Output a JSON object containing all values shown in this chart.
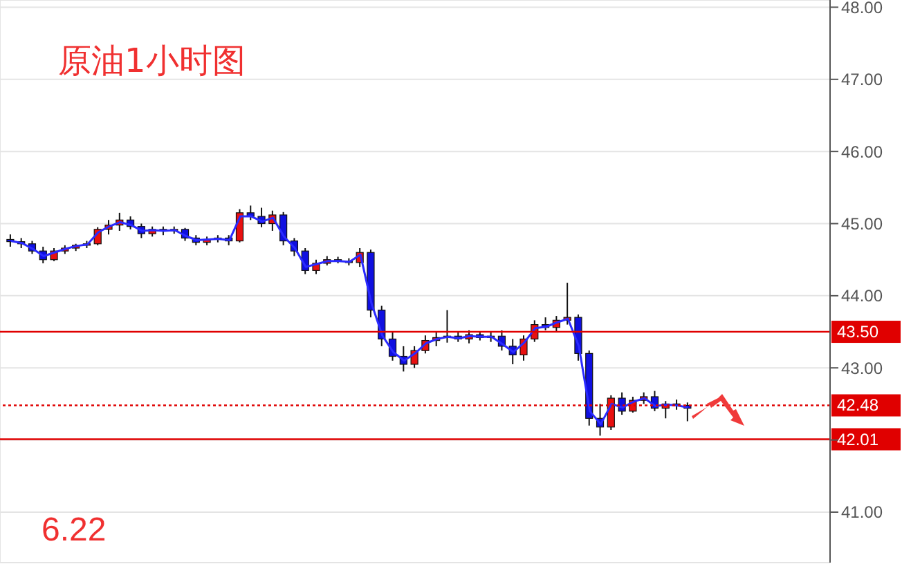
{
  "chart_data": {
    "type": "candlestick",
    "title": "原油1小时图",
    "categories": [
      null,
      null,
      null,
      null,
      null,
      null,
      null,
      null,
      null,
      null,
      null,
      null,
      null,
      null,
      null,
      null,
      null,
      null,
      null,
      null,
      null,
      null,
      null,
      null,
      null,
      null,
      null,
      null,
      null,
      null,
      null,
      null,
      null,
      null,
      null,
      null,
      null,
      null,
      null,
      null,
      null,
      null,
      null,
      null,
      null,
      null,
      null,
      null,
      null,
      null,
      null,
      null,
      null,
      null,
      null,
      null,
      null,
      null,
      null,
      null,
      null,
      null,
      null
    ],
    "ohlc": [
      [
        44.78,
        44.85,
        44.68,
        44.75
      ],
      [
        44.75,
        44.8,
        44.66,
        44.72
      ],
      [
        44.72,
        44.76,
        44.58,
        44.62
      ],
      [
        44.62,
        44.68,
        44.45,
        44.5
      ],
      [
        44.5,
        44.66,
        44.48,
        44.62
      ],
      [
        44.62,
        44.7,
        44.58,
        44.66
      ],
      [
        44.66,
        44.72,
        44.62,
        44.7
      ],
      [
        44.7,
        44.76,
        44.66,
        44.72
      ],
      [
        44.72,
        44.95,
        44.7,
        44.92
      ],
      [
        44.92,
        45.05,
        44.85,
        44.98
      ],
      [
        44.98,
        45.15,
        44.9,
        45.05
      ],
      [
        45.05,
        45.1,
        44.92,
        44.96
      ],
      [
        44.96,
        45.0,
        44.8,
        44.86
      ],
      [
        44.86,
        44.96,
        44.82,
        44.92
      ],
      [
        44.92,
        44.96,
        44.84,
        44.9
      ],
      [
        44.9,
        44.96,
        44.86,
        44.92
      ],
      [
        44.92,
        44.94,
        44.76,
        44.8
      ],
      [
        44.8,
        44.84,
        44.7,
        44.74
      ],
      [
        44.74,
        44.82,
        44.7,
        44.78
      ],
      [
        44.78,
        44.84,
        44.74,
        44.8
      ],
      [
        44.8,
        44.84,
        44.7,
        44.76
      ],
      [
        44.76,
        45.2,
        44.74,
        45.15
      ],
      [
        45.15,
        45.25,
        45.05,
        45.1
      ],
      [
        45.1,
        45.22,
        44.95,
        45.0
      ],
      [
        45.0,
        45.18,
        44.9,
        45.12
      ],
      [
        45.12,
        45.16,
        44.7,
        44.76
      ],
      [
        44.76,
        44.8,
        44.55,
        44.62
      ],
      [
        44.62,
        44.66,
        44.3,
        44.35
      ],
      [
        44.35,
        44.5,
        44.3,
        44.45
      ],
      [
        44.45,
        44.55,
        44.42,
        44.5
      ],
      [
        44.5,
        44.54,
        44.45,
        44.48
      ],
      [
        44.48,
        44.52,
        44.42,
        44.46
      ],
      [
        44.46,
        44.66,
        44.4,
        44.6
      ],
      [
        44.6,
        44.64,
        43.7,
        43.8
      ],
      [
        43.8,
        43.86,
        43.3,
        43.4
      ],
      [
        43.4,
        43.5,
        43.1,
        43.16
      ],
      [
        43.16,
        43.3,
        42.95,
        43.05
      ],
      [
        43.05,
        43.3,
        43.0,
        43.24
      ],
      [
        43.24,
        43.45,
        43.2,
        43.38
      ],
      [
        43.38,
        43.5,
        43.3,
        43.42
      ],
      [
        43.42,
        43.8,
        43.35,
        43.44
      ],
      [
        43.44,
        43.5,
        43.36,
        43.4
      ],
      [
        43.4,
        43.52,
        43.34,
        43.46
      ],
      [
        43.46,
        43.5,
        43.38,
        43.42
      ],
      [
        43.42,
        43.5,
        43.36,
        43.44
      ],
      [
        43.44,
        43.52,
        43.24,
        43.3
      ],
      [
        43.3,
        43.4,
        43.05,
        43.18
      ],
      [
        43.18,
        43.45,
        43.1,
        43.4
      ],
      [
        43.4,
        43.66,
        43.36,
        43.6
      ],
      [
        43.6,
        43.7,
        43.52,
        43.56
      ],
      [
        43.56,
        43.72,
        43.5,
        43.66
      ],
      [
        43.66,
        44.18,
        43.6,
        43.7
      ],
      [
        43.7,
        43.74,
        43.1,
        43.2
      ],
      [
        43.2,
        43.24,
        42.2,
        42.3
      ],
      [
        42.3,
        42.5,
        42.06,
        42.18
      ],
      [
        42.18,
        42.62,
        42.14,
        42.58
      ],
      [
        42.58,
        42.66,
        42.35,
        42.4
      ],
      [
        42.4,
        42.6,
        42.38,
        42.55
      ],
      [
        42.55,
        42.66,
        42.5,
        42.6
      ],
      [
        42.6,
        42.68,
        42.4,
        42.44
      ],
      [
        42.44,
        42.54,
        42.3,
        42.5
      ],
      [
        42.5,
        42.56,
        42.42,
        42.48
      ],
      [
        42.48,
        42.52,
        42.26,
        42.44
      ]
    ],
    "series": [
      {
        "type": "line",
        "color": "#2a2aff",
        "values": [
          44.76,
          44.73,
          44.65,
          44.55,
          44.6,
          44.65,
          44.69,
          44.71,
          44.88,
          44.96,
          45.02,
          44.98,
          44.9,
          44.91,
          44.9,
          44.91,
          44.83,
          44.77,
          44.78,
          44.79,
          44.77,
          45.1,
          45.1,
          45.03,
          45.08,
          44.82,
          44.66,
          44.4,
          44.44,
          44.48,
          44.48,
          44.47,
          44.57,
          43.9,
          43.45,
          43.22,
          43.1,
          43.2,
          43.34,
          43.4,
          43.43,
          43.41,
          43.44,
          43.43,
          43.43,
          43.33,
          43.22,
          43.35,
          43.55,
          43.57,
          43.63,
          43.68,
          43.3,
          42.4,
          42.22,
          42.5,
          42.45,
          42.53,
          42.58,
          42.47,
          42.49,
          42.48,
          42.45
        ]
      }
    ],
    "ylim": [
      40.3,
      48.1
    ],
    "yticks": [
      {
        "value": 41,
        "label": "41.00"
      },
      {
        "value": 42,
        "label": null
      },
      {
        "value": 43,
        "label": "43.00"
      },
      {
        "value": 44,
        "label": "44.00"
      },
      {
        "value": 45,
        "label": "45.00"
      },
      {
        "value": 46,
        "label": "46.00"
      },
      {
        "value": 47,
        "label": "47.00"
      },
      {
        "value": 48,
        "label": "48.00"
      }
    ],
    "ref_lines": [
      {
        "axis": "y",
        "value": 43.5,
        "label": "43.50",
        "color": "#e00000",
        "line_style": "solid"
      },
      {
        "axis": "y",
        "value": 42.48,
        "label": "42.48",
        "color": "#e00000",
        "line_style": "dotted"
      },
      {
        "axis": "y",
        "value": 42.01,
        "label": "42.01",
        "color": "#e00000",
        "line_style": "solid"
      }
    ],
    "annotations": [
      "6.22"
    ],
    "grid": true,
    "tick_labels": "y"
  }
}
